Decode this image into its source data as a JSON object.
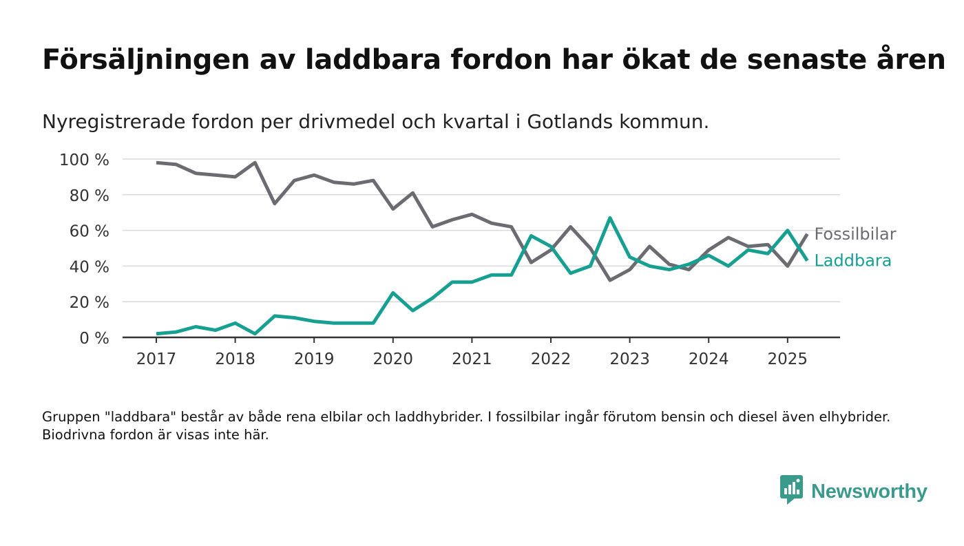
{
  "title": "Försäljningen av laddbara fordon har ökat de senaste åren",
  "subtitle": "Nyregistrerade fordon per drivmedel och kvartal i Gotlands kommun.",
  "footnote": "Gruppen \"laddbara\" består av både rena elbilar och laddhybrider. I fossilbilar ingår förutom bensin och diesel även elhybrider. Biodrivna fordon är visas inte här.",
  "brand": {
    "name": "Newsworthy",
    "icon": "newsworthy-logo-icon",
    "color": "#3a9a8c"
  },
  "chart_data": {
    "type": "line",
    "x": [
      "2017Q1",
      "2017Q2",
      "2017Q3",
      "2017Q4",
      "2018Q1",
      "2018Q2",
      "2018Q3",
      "2018Q4",
      "2019Q1",
      "2019Q2",
      "2019Q3",
      "2019Q4",
      "2020Q1",
      "2020Q2",
      "2020Q3",
      "2020Q4",
      "2021Q1",
      "2021Q2",
      "2021Q3",
      "2021Q4",
      "2022Q1",
      "2022Q2",
      "2022Q3",
      "2022Q4",
      "2023Q1",
      "2023Q2",
      "2023Q3",
      "2023Q4",
      "2024Q1",
      "2024Q2",
      "2024Q3",
      "2024Q4",
      "2025Q1",
      "2025Q2"
    ],
    "x_ticks": [
      "2017",
      "2018",
      "2019",
      "2020",
      "2021",
      "2022",
      "2023",
      "2024",
      "2025"
    ],
    "y_ticks": [
      "0 %",
      "20 %",
      "40 %",
      "60 %",
      "80 %",
      "100 %"
    ],
    "ylim": [
      0,
      100
    ],
    "grid": true,
    "legend": "direct labels at line ends",
    "series": [
      {
        "name": "Fossilbilar",
        "color": "#6b6b72",
        "values": [
          98,
          97,
          92,
          91,
          90,
          98,
          75,
          88,
          91,
          87,
          86,
          88,
          72,
          81,
          62,
          66,
          69,
          64,
          62,
          42,
          49,
          62,
          50,
          32,
          38,
          51,
          41,
          38,
          49,
          56,
          51,
          52,
          40,
          58
        ]
      },
      {
        "name": "Laddbara",
        "color": "#17a092",
        "values": [
          2,
          3,
          6,
          4,
          8,
          2,
          12,
          11,
          9,
          8,
          8,
          8,
          25,
          15,
          22,
          31,
          31,
          35,
          35,
          57,
          51,
          36,
          40,
          67,
          45,
          40,
          38,
          41,
          46,
          40,
          49,
          47,
          60,
          43
        ]
      }
    ]
  }
}
